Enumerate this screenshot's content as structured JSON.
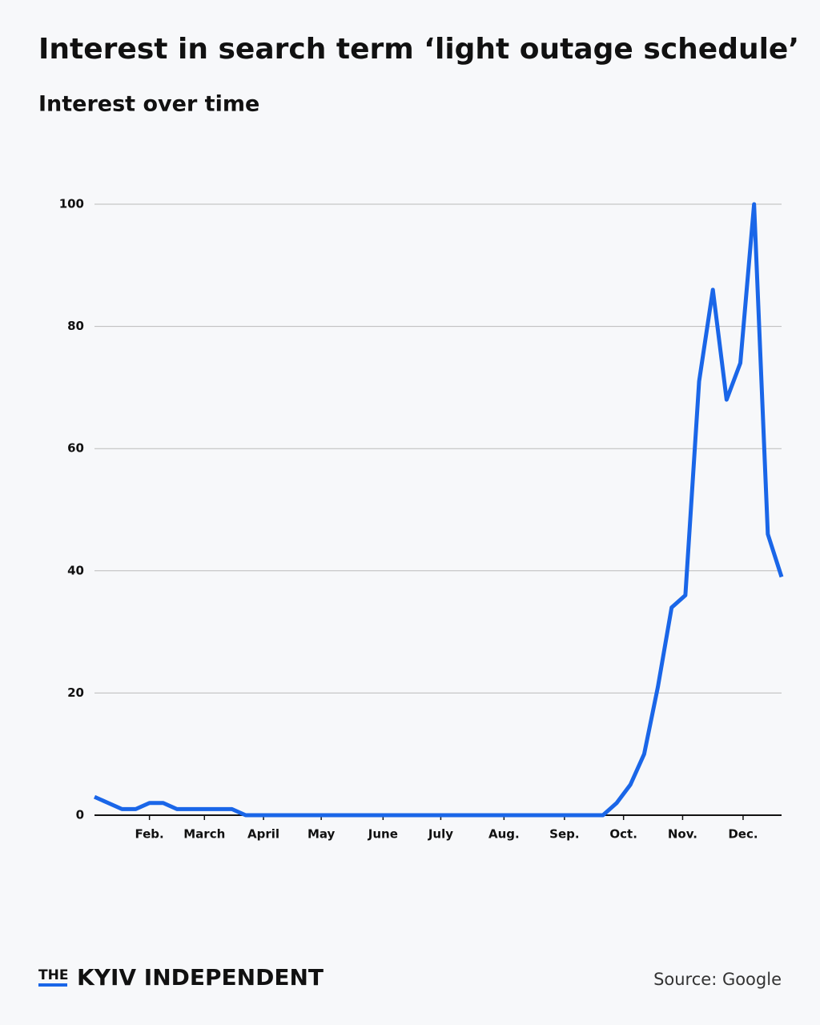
{
  "chart_data": {
    "type": "line",
    "title": "Interest in search term ‘light outage schedule’",
    "subtitle": "Interest over time",
    "series": [
      {
        "name": "light outage schedule",
        "color": "#1a66e8",
        "values": [
          3,
          2,
          1,
          1,
          2,
          2,
          1,
          1,
          1,
          1,
          1,
          0,
          0,
          0,
          0,
          0,
          0,
          0,
          0,
          0,
          0,
          0,
          0,
          0,
          0,
          0,
          0,
          0,
          0,
          0,
          0,
          0,
          0,
          0,
          0,
          0,
          0,
          0,
          2,
          5,
          10,
          21,
          34,
          36,
          71,
          86,
          68,
          74,
          100,
          46,
          39
        ]
      }
    ],
    "xlim": [
      0,
      50
    ],
    "xticks": [
      {
        "value": 4,
        "label": "Feb."
      },
      {
        "value": 8,
        "label": "March"
      },
      {
        "value": 12.3,
        "label": "April"
      },
      {
        "value": 16.5,
        "label": "May"
      },
      {
        "value": 21,
        "label": "June"
      },
      {
        "value": 25.2,
        "label": "July"
      },
      {
        "value": 29.8,
        "label": "Aug."
      },
      {
        "value": 34.2,
        "label": "Sep."
      },
      {
        "value": 38.5,
        "label": "Oct."
      },
      {
        "value": 42.8,
        "label": "Nov."
      },
      {
        "value": 47.2,
        "label": "Dec."
      }
    ],
    "ylim": [
      0,
      100
    ],
    "yticks": [
      0,
      20,
      40,
      60,
      80,
      100
    ],
    "grid": true
  },
  "footer": {
    "logo_prefix": "THE",
    "logo": "KYIV INDEPENDENT",
    "source": "Source: Google"
  }
}
